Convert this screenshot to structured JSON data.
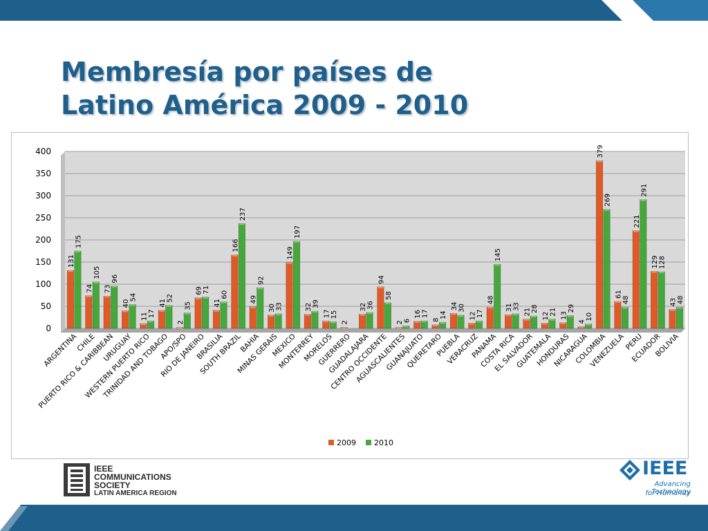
{
  "slide": {
    "title_line1": "Membresía por países de",
    "title_line2": "Latino América 2009 - 2010"
  },
  "logos": {
    "comsoc": {
      "line1": "IEEE",
      "line2": "COMMUNICATIONS",
      "line3": "SOCIETY",
      "line4": "LATIN AMERICA REGION"
    },
    "ieee": {
      "wordmark": "IEEE",
      "tagline1": "Advancing Technology",
      "tagline2": "for Humanity"
    }
  },
  "colors": {
    "theme_blue": "#1f5f8b",
    "series_2009": "#e05a25",
    "series_2010": "#46a73a",
    "plot_background": "#d9d9d9"
  },
  "chart_data": {
    "type": "bar",
    "title": "",
    "xlabel": "",
    "ylabel": "",
    "ylim": [
      0,
      400
    ],
    "yticks": [
      0,
      50,
      100,
      150,
      200,
      250,
      300,
      350,
      400
    ],
    "grid": true,
    "legend_position": "bottom",
    "categories": [
      "ARGENTINA",
      "CHILE",
      "PUERTO RICO & CARIBBEAN",
      "URUGUAY",
      "WESTERN PUERTO RICO",
      "TRINIDAD AND TOBAGO",
      "APO/SPO",
      "RIO DE JANEIRO",
      "BRASILIA",
      "SOUTH BRAZIL",
      "BAHIA",
      "MINAS GERAIS",
      "MEXICO",
      "MONTERREY",
      "MORELOS",
      "GUERRERO",
      "GUADALAJARA",
      "CENTRO OCCIDENTE",
      "AGUASCALIENTES",
      "GUANAJUATO",
      "QUERETARO",
      "PUEBLA",
      "VERACRUZ",
      "PANAMA",
      "COSTA RICA",
      "EL SALVADOR",
      "GUATEMALA",
      "HONDURAS",
      "NICARAGUA",
      "COLOMBIA",
      "VENEZUELA",
      "PERU",
      "ECUADOR",
      "BOLIVIA"
    ],
    "series": [
      {
        "name": "2009",
        "color": "#e05a25",
        "values": [
          131,
          74,
          73,
          40,
          11,
          41,
          2,
          69,
          41,
          166,
          49,
          30,
          149,
          32,
          17,
          2,
          32,
          94,
          2,
          16,
          8,
          34,
          12,
          48,
          31,
          21,
          12,
          13,
          4,
          379,
          61,
          221,
          129,
          43
        ]
      },
      {
        "name": "2010",
        "color": "#46a73a",
        "values": [
          175,
          105,
          96,
          54,
          17,
          52,
          35,
          71,
          60,
          237,
          92,
          33,
          197,
          39,
          15,
          null,
          36,
          58,
          6,
          17,
          14,
          30,
          17,
          145,
          33,
          28,
          21,
          29,
          10,
          269,
          48,
          291,
          128,
          48
        ]
      }
    ]
  }
}
